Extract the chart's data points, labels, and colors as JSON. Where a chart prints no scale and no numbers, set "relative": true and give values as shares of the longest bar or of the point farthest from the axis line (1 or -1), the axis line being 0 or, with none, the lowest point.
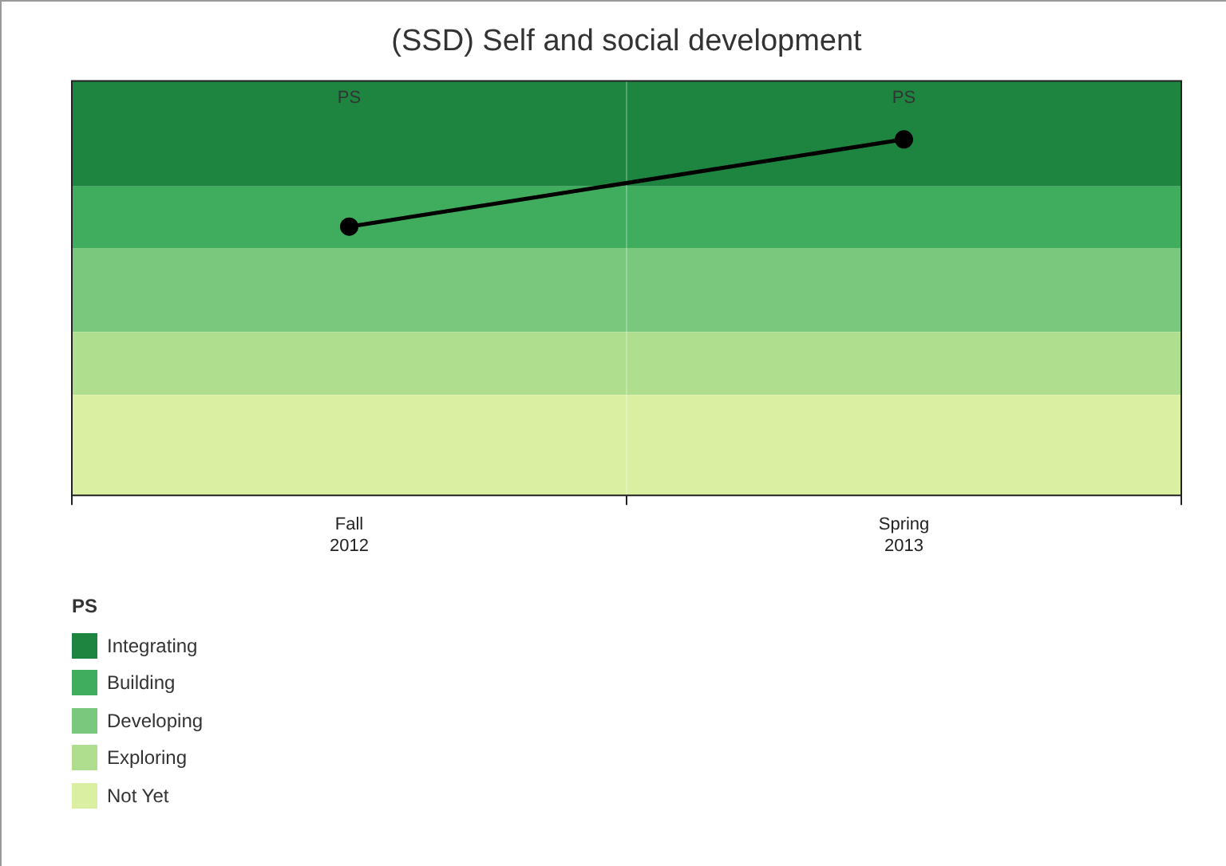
{
  "chart_data": {
    "type": "line",
    "title": "(SSD) Self and social development",
    "relative": true,
    "categories": [
      "Fall 2012",
      "Spring 2013"
    ],
    "series": [
      {
        "color": "#000000",
        "values": [
          0.755,
          1
        ]
      }
    ],
    "marker": "circle",
    "grid": "x",
    "legend": "bottom left",
    "legend_title": "PS",
    "bands": [
      {
        "axis": "y",
        "from": 0.868,
        "to": 1.164,
        "label": "Integrating",
        "color": "#1e8541"
      },
      {
        "axis": "y",
        "from": 0.695,
        "to": 0.868,
        "label": "Building",
        "color": "#40ad5e"
      },
      {
        "axis": "y",
        "from": 0.459,
        "to": 0.695,
        "label": "Developing",
        "color": "#7ac87d"
      },
      {
        "axis": "y",
        "from": 0.282,
        "to": 0.459,
        "label": "Exploring",
        "color": "#afde8f"
      },
      {
        "axis": "y",
        "from": 0,
        "to": 0.282,
        "label": "Not Yet",
        "color": "#dbefa3"
      }
    ],
    "annotations": [
      "PS",
      "PS"
    ]
  }
}
